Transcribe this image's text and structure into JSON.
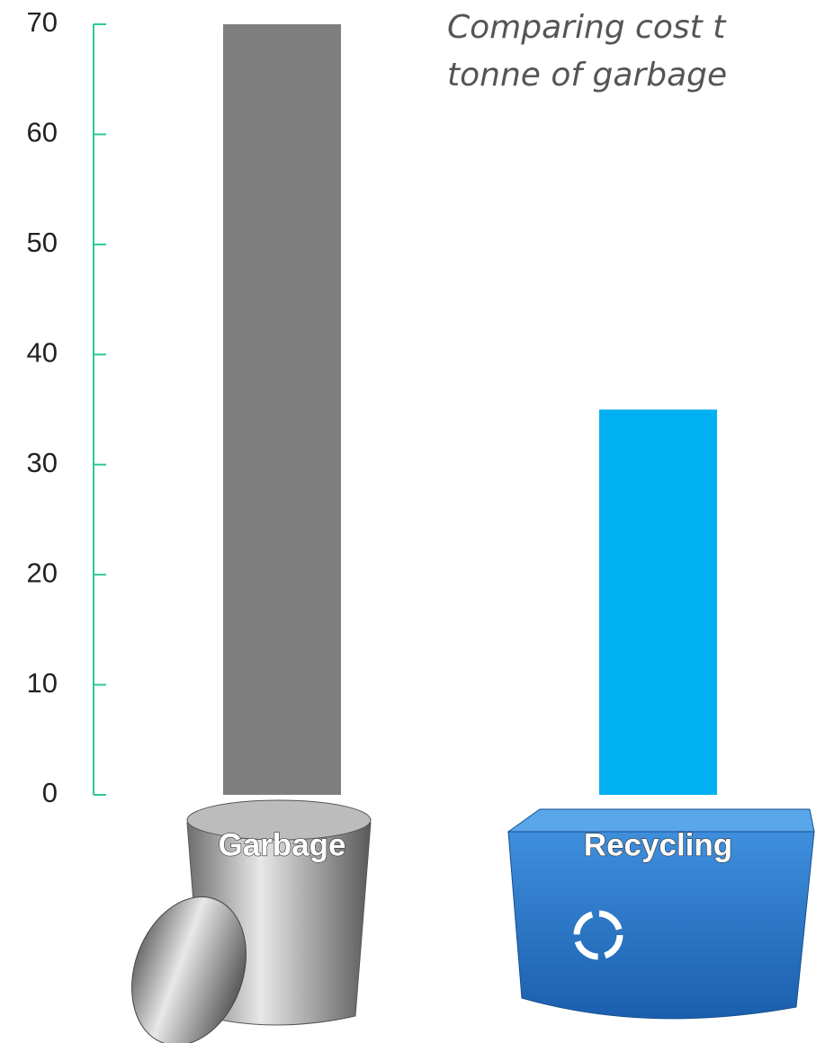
{
  "chart_data": {
    "type": "bar",
    "title": [
      "Comparing cost t",
      "tonne of garbage"
    ],
    "categories": [
      "Garbage",
      "Recycling"
    ],
    "values": [
      70,
      35
    ],
    "colors": [
      "#7f7f7f",
      "#00b0f0"
    ],
    "axis_color": "#2cc79c",
    "ylim": [
      0,
      70
    ],
    "yticks": [
      0,
      10,
      20,
      30,
      40,
      50,
      60,
      70
    ],
    "grid": false
  }
}
